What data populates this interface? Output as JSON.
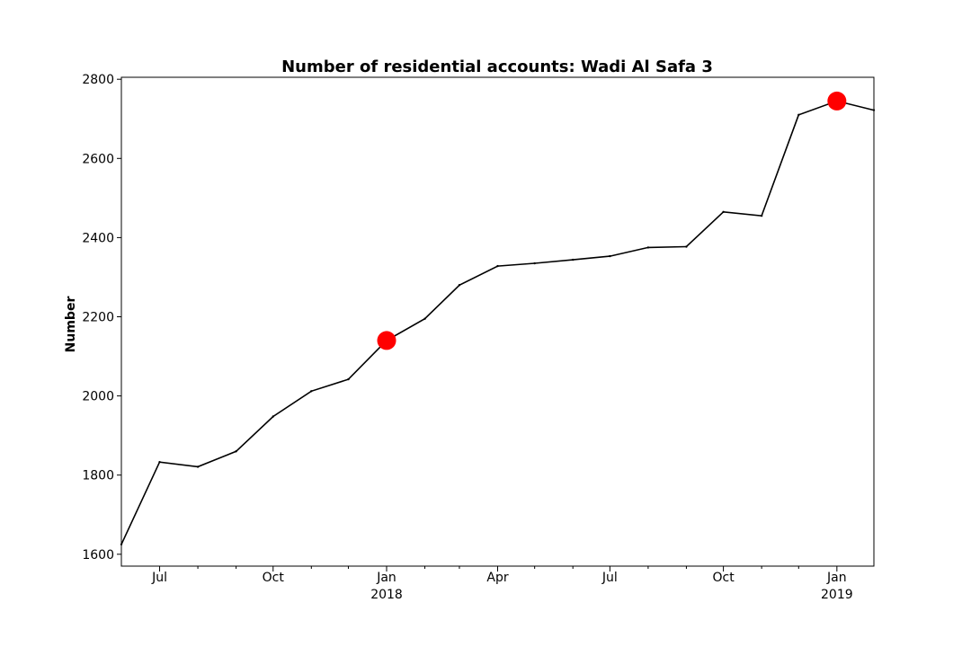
{
  "chart_data": {
    "type": "line",
    "title": "Number of residential accounts: Wadi Al Safa 3",
    "xlabel": "",
    "ylabel": "Number",
    "grid": false,
    "x_range": [
      "2017-05-31",
      "2019-01-31"
    ],
    "ylim": [
      1570,
      2805
    ],
    "yticks": [
      1600,
      1800,
      2000,
      2200,
      2400,
      2600,
      2800
    ],
    "xticks": [
      {
        "date": "2017-07-01",
        "label": "Jul",
        "sublabel": ""
      },
      {
        "date": "2017-10-01",
        "label": "Oct",
        "sublabel": ""
      },
      {
        "date": "2018-01-01",
        "label": "Jan",
        "sublabel": "2018"
      },
      {
        "date": "2018-04-01",
        "label": "Apr",
        "sublabel": ""
      },
      {
        "date": "2018-07-01",
        "label": "Jul",
        "sublabel": ""
      },
      {
        "date": "2018-10-01",
        "label": "Oct",
        "sublabel": ""
      },
      {
        "date": "2019-01-01",
        "label": "Jan",
        "sublabel": "2019"
      }
    ],
    "minor_ticks": [
      "2017-08-01",
      "2017-09-01",
      "2017-11-01",
      "2017-12-01",
      "2018-02-01",
      "2018-03-01",
      "2018-05-01",
      "2018-06-01",
      "2018-08-01",
      "2018-09-01",
      "2018-11-01",
      "2018-12-01"
    ],
    "series": [
      {
        "color": "#000000",
        "points": [
          [
            "2017-05-31",
            1625
          ],
          [
            "2017-07-01",
            1833
          ],
          [
            "2017-08-01",
            1821
          ],
          [
            "2017-09-01",
            1860
          ],
          [
            "2017-10-01",
            1948
          ],
          [
            "2017-11-01",
            2012
          ],
          [
            "2017-12-01",
            2042
          ],
          [
            "2018-01-01",
            2140
          ],
          [
            "2018-02-01",
            2195
          ],
          [
            "2018-03-01",
            2280
          ],
          [
            "2018-04-01",
            2328
          ],
          [
            "2018-05-01",
            2335
          ],
          [
            "2018-06-01",
            2344
          ],
          [
            "2018-07-01",
            2353
          ],
          [
            "2018-08-01",
            2375
          ],
          [
            "2018-09-01",
            2377
          ],
          [
            "2018-10-01",
            2465
          ],
          [
            "2018-11-01",
            2455
          ],
          [
            "2018-12-01",
            2710
          ],
          [
            "2019-01-01",
            2745
          ],
          [
            "2019-01-31",
            2722
          ]
        ]
      }
    ],
    "highlights": [
      {
        "date": "2018-01-01",
        "value": 2140,
        "color": "#ff0000"
      },
      {
        "date": "2019-01-01",
        "value": 2745,
        "color": "#ff0000"
      }
    ]
  }
}
